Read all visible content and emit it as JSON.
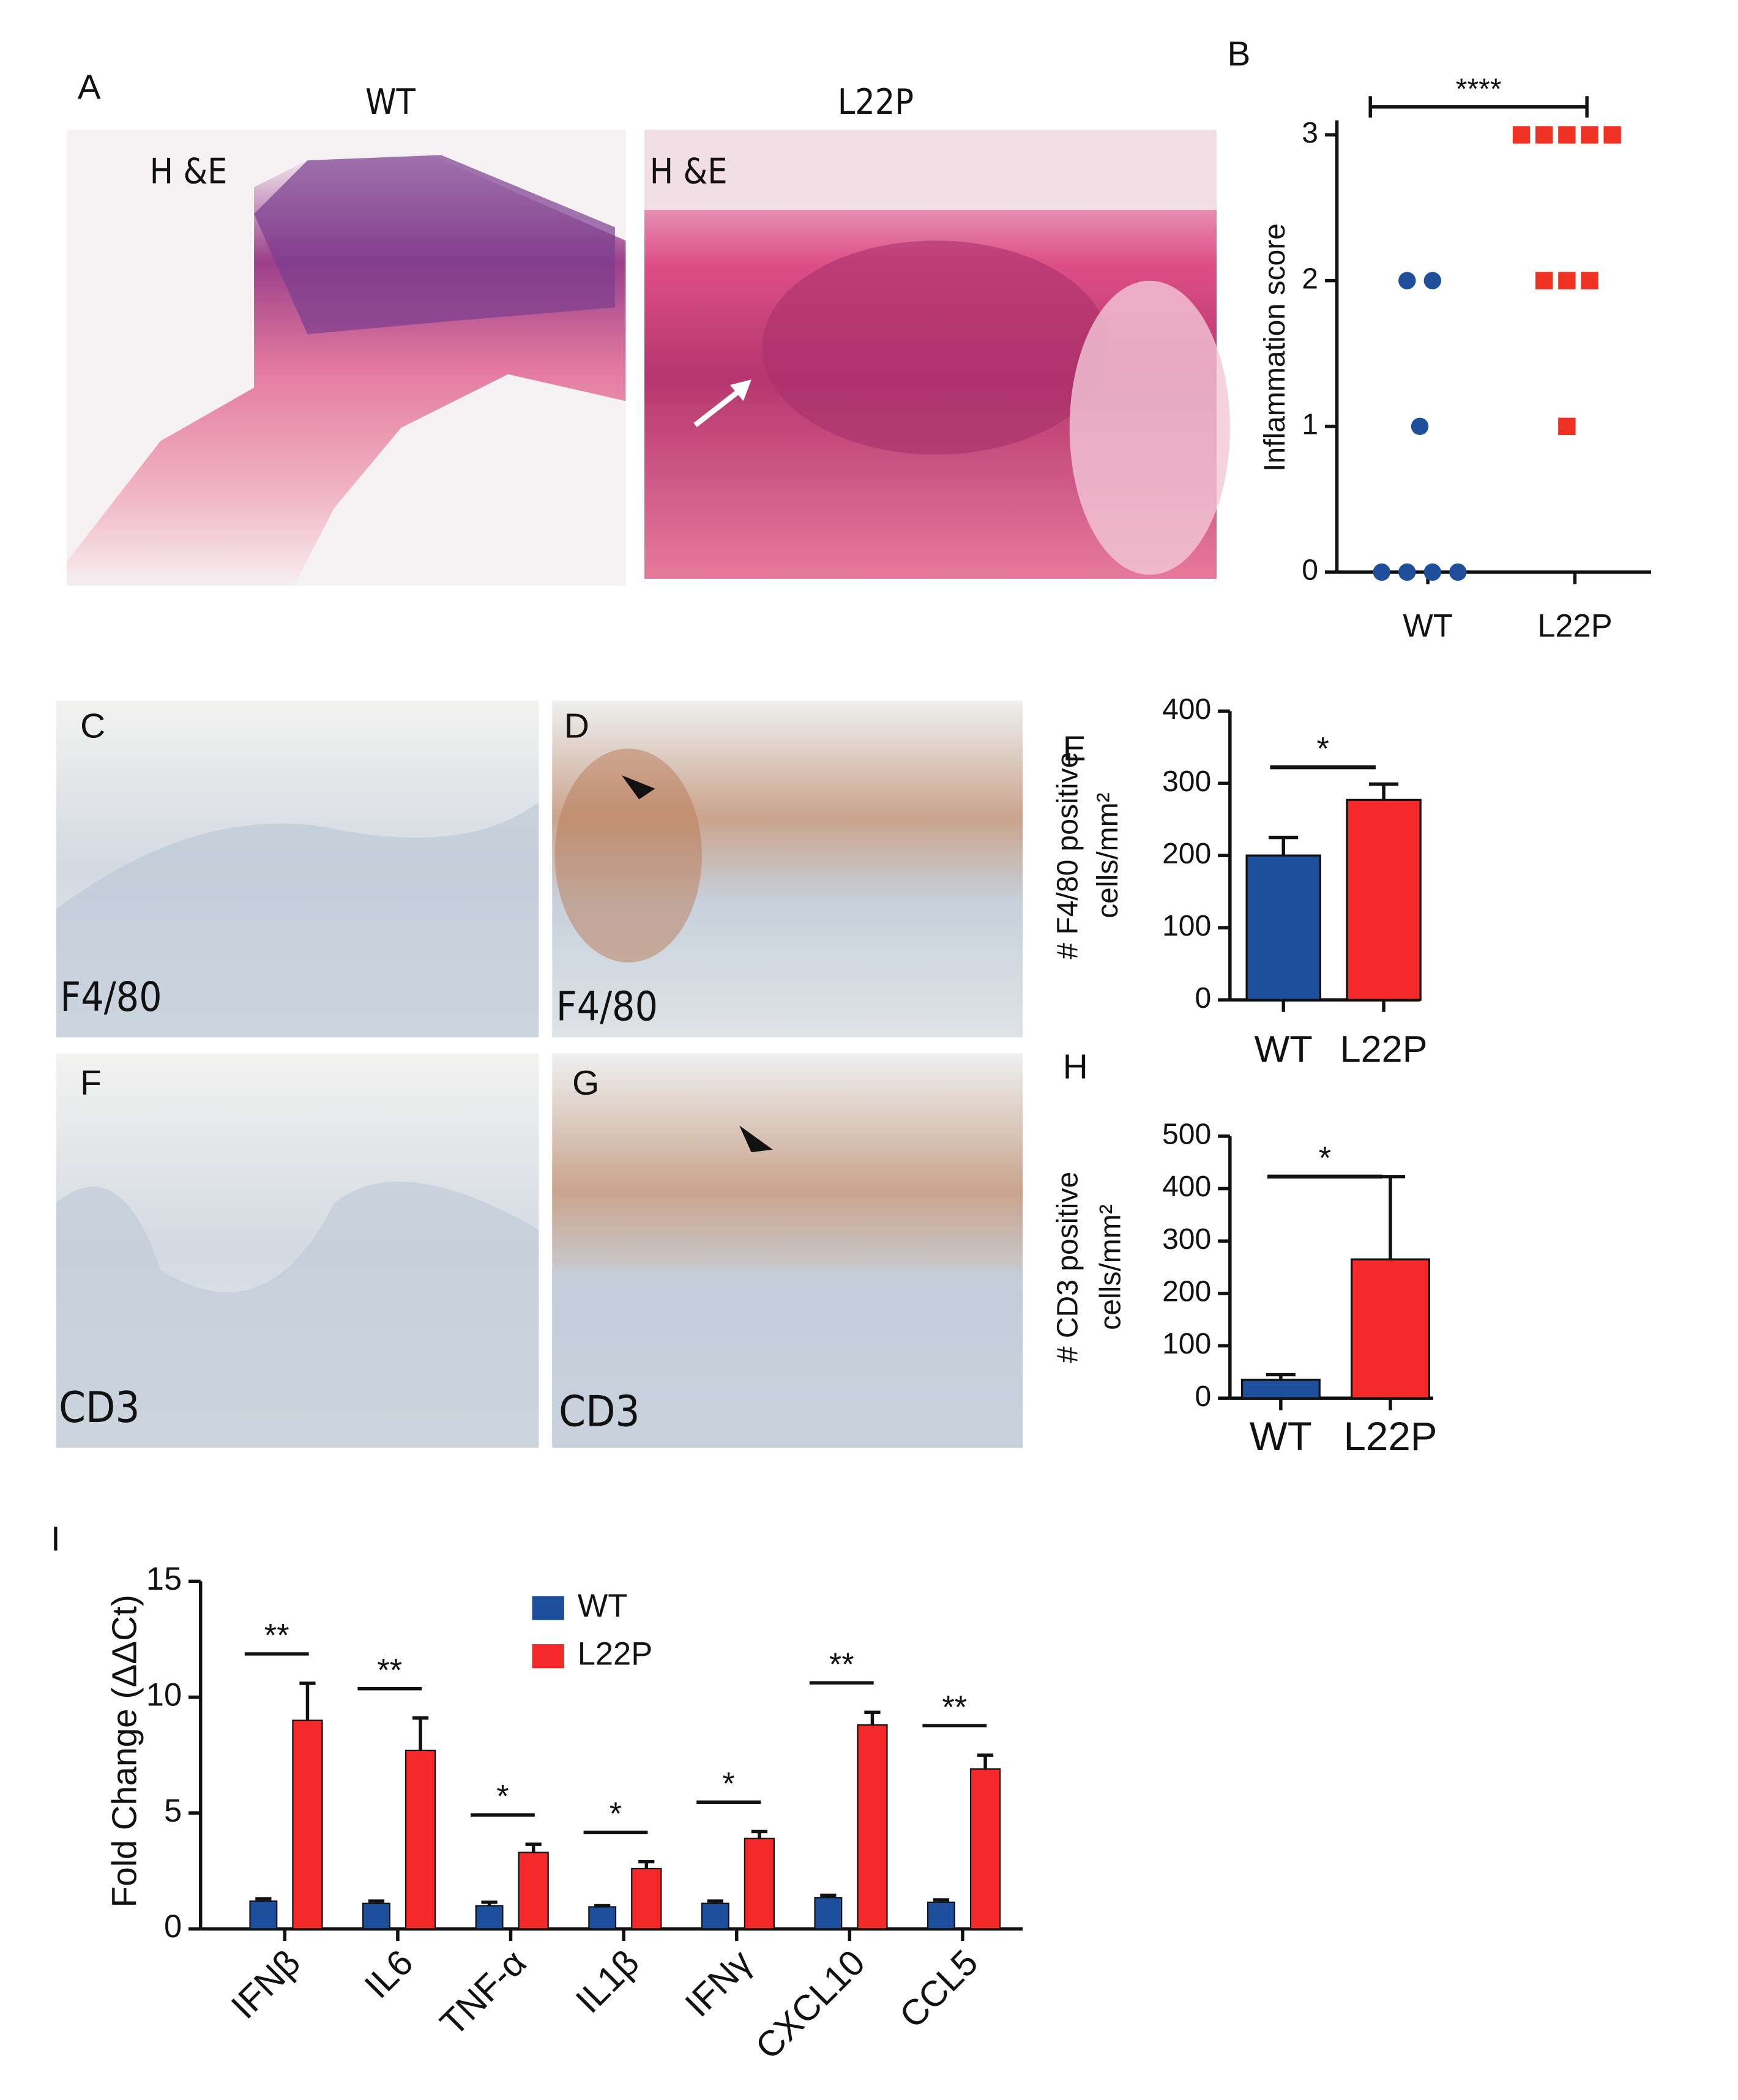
{
  "panels": {
    "A": {
      "label": "A",
      "left_title": "WT",
      "right_title": "L22P",
      "left_stain": "H &E",
      "right_stain": "H &E"
    },
    "C": {
      "label": "C",
      "stain": "F4/80"
    },
    "D": {
      "label": "D",
      "stain": "F4/80"
    },
    "F": {
      "label": "F",
      "stain": "CD3"
    },
    "G": {
      "label": "G",
      "stain": "CD3"
    }
  },
  "chart_data": [
    {
      "type": "scatter",
      "label": "B",
      "ylabel": "Inflammation score",
      "categories": [
        "WT",
        "L22P"
      ],
      "series": [
        {
          "color": "#1f4e9b",
          "marker": "circle",
          "values": [
            2,
            2,
            1,
            0,
            0,
            0,
            0
          ]
        },
        {
          "color": "#ef3224",
          "marker": "square",
          "values": [
            3,
            3,
            3,
            3,
            3,
            2,
            2,
            2,
            1
          ]
        }
      ],
      "ylim": [
        0,
        3.1
      ],
      "yticks": [
        0,
        1,
        2,
        3
      ],
      "significance": "****"
    },
    {
      "type": "bar",
      "label": "E",
      "ylabel": [
        "# F4/80 positive",
        "cells/mm²"
      ],
      "categories": [
        "WT",
        "L22P"
      ],
      "values": [
        200,
        277
      ],
      "errors": [
        25,
        22
      ],
      "colors": [
        "#1d4f9c",
        "#f42a2a"
      ],
      "ylim": [
        0,
        400
      ],
      "yticks": [
        0,
        100,
        200,
        300,
        400
      ],
      "significance": "*"
    },
    {
      "type": "bar",
      "label": "H",
      "ylabel": [
        "# CD3 positive",
        "cells/mm²"
      ],
      "categories": [
        "WT",
        "L22P"
      ],
      "values": [
        35,
        265
      ],
      "errors": [
        10,
        158
      ],
      "colors": [
        "#1d4f9c",
        "#f42a2a"
      ],
      "ylim": [
        0,
        500
      ],
      "yticks": [
        0,
        100,
        200,
        300,
        400,
        500
      ],
      "significance": "*"
    },
    {
      "type": "grouped_bar",
      "label": "I",
      "ylabel": "Fold Change (ΔΔCt)",
      "categories": [
        "IFNβ",
        "IL6",
        "TNF-α",
        "IL1β",
        "IFNγ",
        "CXCL10",
        "CCL5"
      ],
      "series": [
        {
          "name": "WT",
          "color": "#1d4f9c",
          "values": [
            1.2,
            1.1,
            1.0,
            0.95,
            1.1,
            1.35,
            1.15
          ],
          "errors": [
            0.1,
            0.1,
            0.15,
            0.05,
            0.1,
            0.1,
            0.1
          ]
        },
        {
          "name": "L22P",
          "color": "#f42a2a",
          "values": [
            9.0,
            7.7,
            3.3,
            2.6,
            3.9,
            8.8,
            6.9
          ],
          "errors": [
            1.6,
            1.4,
            0.35,
            0.3,
            0.3,
            0.55,
            0.6
          ]
        }
      ],
      "ylim": [
        0,
        15
      ],
      "yticks": [
        0,
        5,
        10,
        15
      ],
      "significance": [
        "**",
        "**",
        "*",
        "*",
        "*",
        "**",
        "**"
      ]
    }
  ]
}
